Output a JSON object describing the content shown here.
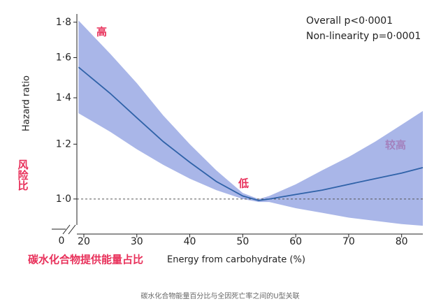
{
  "chart_data": {
    "type": "line",
    "y_scale": "log",
    "x_label": "Energy from carbohydrate (%)",
    "x_label_cn": "碳水化合物提供能量占比",
    "y_label": "Hazard ratio",
    "y_label_cn": "风险比",
    "stats": [
      "Overall p<0·0001",
      "Non-linearity p=0·0001"
    ],
    "annotations": [
      "高",
      "低",
      "较高"
    ],
    "axis_break_label": "0",
    "caption": "碳水化合物能量百分比与全因死亡率之间的U型关联",
    "x": [
      19,
      25,
      30,
      35,
      40,
      45,
      50,
      53,
      55,
      60,
      65,
      70,
      75,
      80,
      84
    ],
    "series": [
      {
        "color": "#2f62a8",
        "values": [
          1.55,
          1.42,
          1.31,
          1.21,
          1.13,
          1.06,
          1.01,
          0.995,
          1.0,
          1.015,
          1.03,
          1.05,
          1.07,
          1.09,
          1.11
        ],
        "lower": [
          1.33,
          1.25,
          1.18,
          1.12,
          1.07,
          1.03,
          1.0,
          0.99,
          0.99,
          0.97,
          0.955,
          0.94,
          0.93,
          0.92,
          0.915
        ],
        "upper": [
          1.81,
          1.62,
          1.47,
          1.32,
          1.2,
          1.1,
          1.02,
          1.0,
          1.01,
          1.05,
          1.1,
          1.15,
          1.21,
          1.28,
          1.34
        ],
        "band_color": "#8c9de0"
      }
    ],
    "reference_line": 1.0,
    "xlim": [
      14,
      84
    ],
    "xticks": [
      20,
      30,
      40,
      50,
      60,
      70,
      80
    ],
    "ylim": [
      0.89,
      1.85
    ],
    "yticks": [
      {
        "value": 1.0,
        "label": "1·0"
      },
      {
        "value": 1.2,
        "label": "1·2"
      },
      {
        "value": 1.4,
        "label": "1·4"
      },
      {
        "value": 1.6,
        "label": "1·6"
      },
      {
        "value": 1.8,
        "label": "1·8"
      }
    ]
  }
}
